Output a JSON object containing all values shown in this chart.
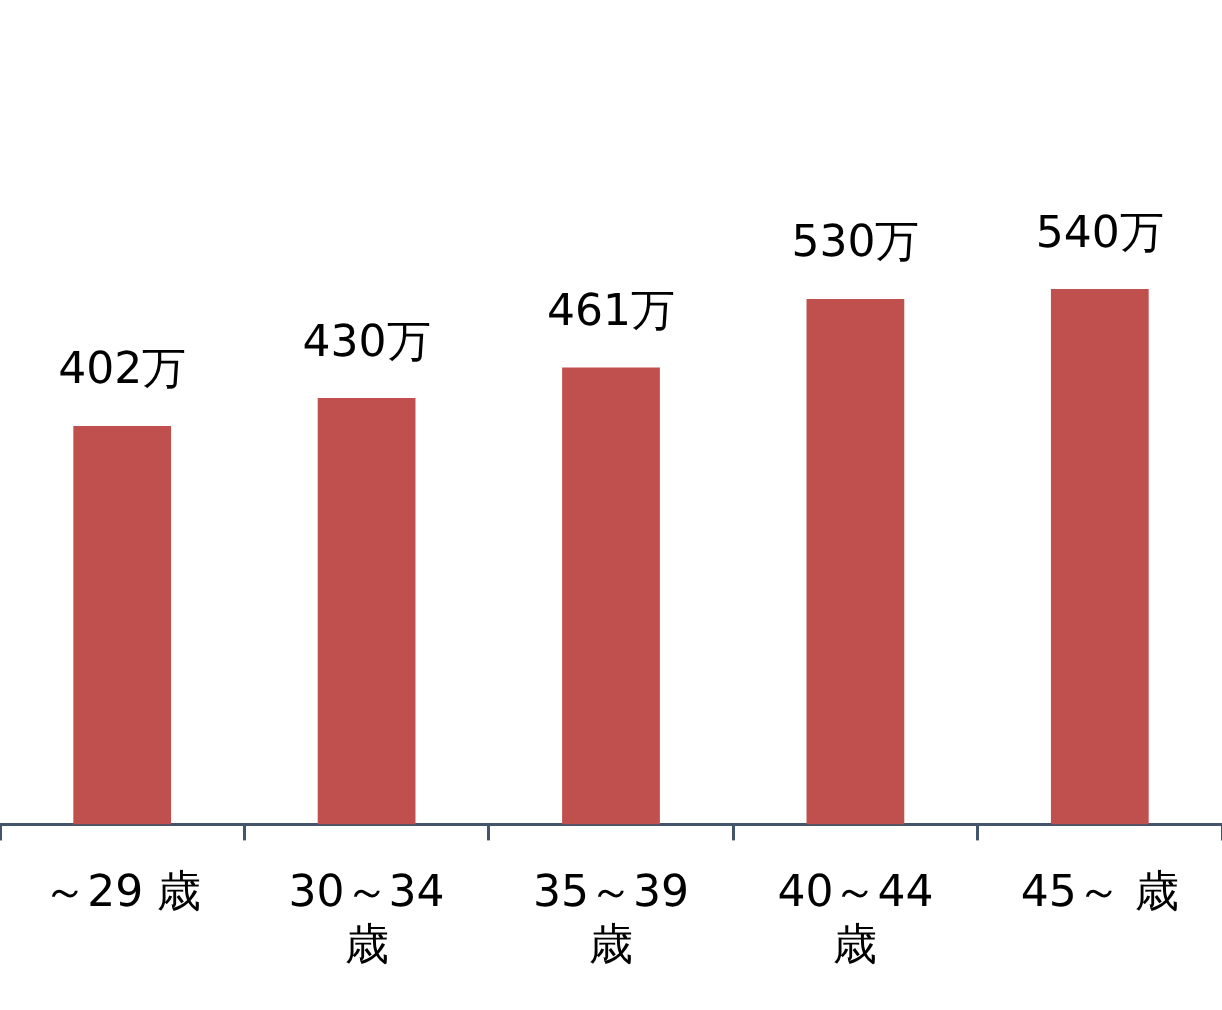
{
  "chart_data": {
    "type": "bar",
    "categories": [
      "～29 歳",
      "30～34 歳",
      "35～39 歳",
      "40～44 歳",
      "45～ 歳"
    ],
    "values": [
      402,
      430,
      461,
      530,
      540
    ],
    "value_labels": [
      "402万",
      "430万",
      "461万",
      "530万",
      "540万"
    ],
    "color": "#c0504d",
    "grid": false,
    "legend": false
  }
}
